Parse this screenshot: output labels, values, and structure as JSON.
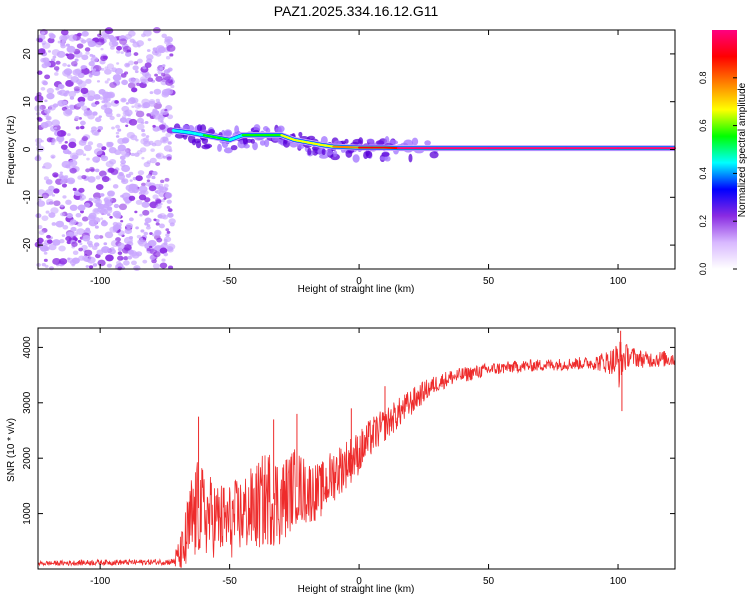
{
  "title": "PAZ1.2025.334.16.12.G11",
  "chart_data": [
    {
      "type": "heatmap",
      "panel": "top",
      "xlabel": "Height of straight line (km)",
      "ylabel": "Frequency (Hz)",
      "xlim": [
        -124,
        122
      ],
      "ylim": [
        -25,
        25
      ],
      "xticks": [
        -100,
        -50,
        0,
        50,
        100
      ],
      "yticks": [
        20,
        10,
        0,
        -10,
        -20
      ],
      "colorbar": {
        "label": "Normalized spectral amplitude",
        "range": [
          0.0,
          1.0
        ],
        "ticks": [
          0.0,
          0.2,
          0.4,
          0.6,
          0.8
        ],
        "colors": [
          "#ffffff",
          "#d8b8ff",
          "#8a2be2",
          "#0000ff",
          "#00ffff",
          "#00ff00",
          "#ffff00",
          "#ff8000",
          "#ff0000",
          "#ff0080"
        ]
      },
      "noise_region_km": [
        -124,
        -72
      ],
      "track": {
        "x_km": [
          -72,
          -65,
          -60,
          -55,
          -50,
          -45,
          -40,
          -35,
          -30,
          -25,
          -20,
          -15,
          -10,
          -5,
          0,
          5,
          10,
          15,
          30,
          50,
          80,
          100,
          122
        ],
        "freq_hz": [
          4,
          3.5,
          3,
          2.5,
          2,
          3,
          3,
          3,
          3,
          2,
          1.5,
          1,
          0.6,
          0.5,
          0.4,
          0.4,
          0.4,
          0.3,
          0.3,
          0.3,
          0.3,
          0.3,
          0.3
        ],
        "amplitude": [
          0.4,
          0.45,
          0.5,
          0.5,
          0.45,
          0.55,
          0.6,
          0.6,
          0.65,
          0.65,
          0.7,
          0.7,
          0.75,
          0.8,
          0.85,
          0.9,
          0.9,
          0.95,
          1.0,
          1.0,
          1.0,
          1.0,
          1.0
        ]
      }
    },
    {
      "type": "line",
      "panel": "bottom",
      "series_name": "SNR",
      "color": "#ee2b2b",
      "xlabel": "Height of straight line (km)",
      "ylabel": "SNR (10 * v/v)",
      "xlim": [
        -124,
        122
      ],
      "ylim": [
        0,
        4350
      ],
      "xticks": [
        -100,
        -50,
        0,
        50,
        100
      ],
      "yticks": [
        1000,
        2000,
        3000,
        4000
      ],
      "x": [
        -124,
        -110,
        -100,
        -90,
        -80,
        -72,
        -68,
        -65,
        -62,
        -60,
        -55,
        -50,
        -45,
        -40,
        -35,
        -30,
        -25,
        -20,
        -15,
        -10,
        -5,
        0,
        5,
        10,
        15,
        20,
        25,
        30,
        35,
        40,
        50,
        60,
        70,
        80,
        90,
        98,
        100,
        102,
        104,
        110,
        122
      ],
      "values": [
        100,
        110,
        120,
        120,
        125,
        130,
        300,
        800,
        1100,
        1000,
        900,
        850,
        1000,
        1100,
        1300,
        1200,
        1500,
        1400,
        1400,
        1700,
        1900,
        2100,
        2400,
        2600,
        2800,
        3000,
        3200,
        3350,
        3450,
        3500,
        3600,
        3650,
        3680,
        3700,
        3720,
        3750,
        3700,
        3800,
        3850,
        3780,
        3800
      ],
      "spread": [
        40,
        50,
        50,
        50,
        50,
        60,
        500,
        900,
        900,
        800,
        700,
        700,
        700,
        800,
        900,
        800,
        700,
        600,
        500,
        500,
        450,
        400,
        350,
        300,
        280,
        250,
        200,
        160,
        150,
        140,
        120,
        110,
        110,
        110,
        120,
        250,
        500,
        300,
        200,
        150,
        150
      ],
      "spikes": [
        {
          "x": -62,
          "y": 2750
        },
        {
          "x": -33,
          "y": 2700
        },
        {
          "x": -24,
          "y": 2800
        },
        {
          "x": -3,
          "y": 2900
        },
        {
          "x": 10,
          "y": 3300
        },
        {
          "x": 101,
          "y": 4300
        },
        {
          "x": 101.5,
          "y": 2850
        }
      ]
    }
  ]
}
